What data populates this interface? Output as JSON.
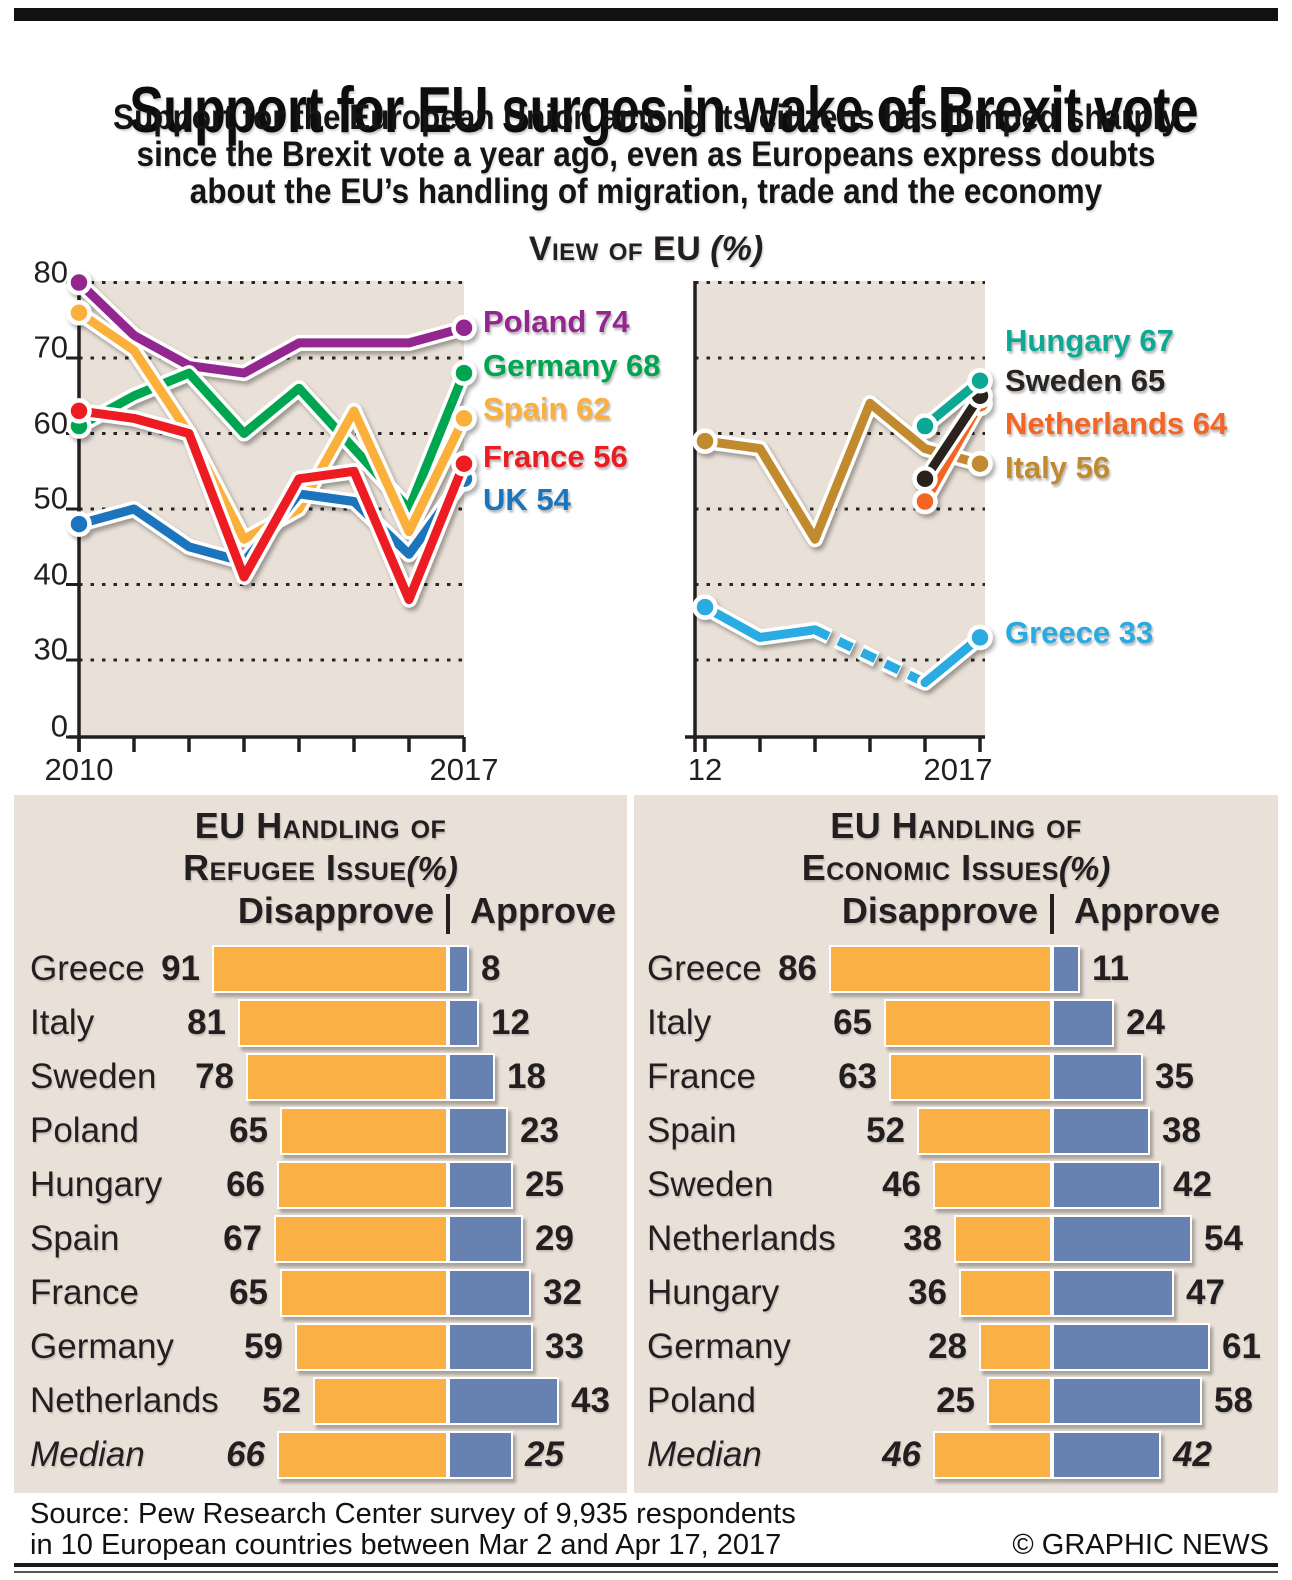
{
  "header": {
    "title": "Support for EU surges in wake of Brexit vote",
    "subtitle_lines": [
      "Support for the European Union among its citizens has jumped sharply",
      "since the Brexit vote a year ago, even as Europeans express doubts",
      "about the EU’s handling of migration, trade and the economy"
    ]
  },
  "chart_title": {
    "main": "View of EU",
    "unit": "(%)"
  },
  "chart_data": [
    {
      "id": "view-of-eu-left",
      "type": "line",
      "x": [
        2010,
        2011,
        2012,
        2013,
        2014,
        2015,
        2016,
        2017
      ],
      "x_axis_labels": [
        "2010",
        "2017"
      ],
      "ylim": [
        0,
        80
      ],
      "yticks": [
        80,
        70,
        60,
        50,
        40,
        30,
        0
      ],
      "grid": "dotted-horizontal",
      "legend_position": "right",
      "series": [
        {
          "name": "Poland",
          "color": "#93278F",
          "values": [
            80,
            73,
            69,
            68,
            72,
            72,
            72,
            74
          ],
          "label": "Poland 74"
        },
        {
          "name": "Germany",
          "color": "#00A550",
          "values": [
            61,
            65,
            68,
            60,
            66,
            58,
            50,
            68
          ],
          "label": "Germany 68"
        },
        {
          "name": "Spain",
          "color": "#FBB03B",
          "values": [
            76,
            71,
            60,
            46,
            50,
            63,
            47,
            62
          ],
          "label": "Spain 62"
        },
        {
          "name": "UK",
          "color": "#1B75BC",
          "values": [
            48,
            50,
            45,
            43,
            52,
            51,
            44,
            54
          ],
          "label": "UK 54"
        },
        {
          "name": "France",
          "color": "#EC1C24",
          "values": [
            63,
            62,
            60,
            41,
            54,
            55,
            38,
            56
          ],
          "label": "France 56"
        }
      ]
    },
    {
      "id": "view-of-eu-right",
      "type": "line",
      "x": [
        2012,
        2013,
        2014,
        2015,
        2016,
        2017
      ],
      "x_axis_labels": [
        "12",
        "2017"
      ],
      "ylim": [
        0,
        80
      ],
      "grid": "dotted-horizontal",
      "legend_position": "right",
      "series": [
        {
          "name": "Italy",
          "color": "#C18A2E",
          "values": [
            59,
            58,
            46,
            64,
            58,
            56
          ],
          "label": "Italy 56"
        },
        {
          "name": "Netherlands",
          "color": "#F26522",
          "values": [
            null,
            null,
            null,
            null,
            51,
            64
          ],
          "label": "Netherlands 64"
        },
        {
          "name": "Sweden",
          "color": "#29241F",
          "values": [
            null,
            null,
            null,
            null,
            54,
            65
          ],
          "label": "Sweden 65"
        },
        {
          "name": "Hungary",
          "color": "#0FA895",
          "values": [
            null,
            null,
            null,
            null,
            61,
            67
          ],
          "label": "Hungary 67"
        },
        {
          "name": "Greece",
          "color": "#29ABE2",
          "values": [
            37,
            33,
            34,
            null,
            27,
            33
          ],
          "label": "Greece 33",
          "segments": [
            {
              "idx": [
                0,
                1,
                2
              ],
              "dashed": false
            },
            {
              "idx": [
                2,
                4
              ],
              "dashed": true
            },
            {
              "idx": [
                4,
                5
              ],
              "dashed": false
            }
          ]
        }
      ]
    },
    {
      "id": "refugee-table",
      "type": "bar-table",
      "title_line1": "EU Handling of",
      "title_line2": "Refugee Issue",
      "unit": "(%)",
      "columns": [
        "Disapprove",
        "Approve"
      ],
      "colors": {
        "disapprove": "#FBB046",
        "approve": "#6782B1"
      },
      "rows": [
        {
          "country": "Greece",
          "disapprove": 91,
          "approve": 8
        },
        {
          "country": "Italy",
          "disapprove": 81,
          "approve": 12
        },
        {
          "country": "Sweden",
          "disapprove": 78,
          "approve": 18
        },
        {
          "country": "Poland",
          "disapprove": 65,
          "approve": 23
        },
        {
          "country": "Hungary",
          "disapprove": 66,
          "approve": 25
        },
        {
          "country": "Spain",
          "disapprove": 67,
          "approve": 29
        },
        {
          "country": "France",
          "disapprove": 65,
          "approve": 32
        },
        {
          "country": "Germany",
          "disapprove": 59,
          "approve": 33
        },
        {
          "country": "Netherlands",
          "disapprove": 52,
          "approve": 43
        },
        {
          "country": "Median",
          "disapprove": 66,
          "approve": 25
        }
      ]
    },
    {
      "id": "economic-table",
      "type": "bar-table",
      "title_line1": "EU Handling of",
      "title_line2": "Economic Issues",
      "unit": "(%)",
      "columns": [
        "Disapprove",
        "Approve"
      ],
      "colors": {
        "disapprove": "#FBB046",
        "approve": "#6782B1"
      },
      "rows": [
        {
          "country": "Greece",
          "disapprove": 86,
          "approve": 11
        },
        {
          "country": "Italy",
          "disapprove": 65,
          "approve": 24
        },
        {
          "country": "France",
          "disapprove": 63,
          "approve": 35
        },
        {
          "country": "Spain",
          "disapprove": 52,
          "approve": 38
        },
        {
          "country": "Sweden",
          "disapprove": 46,
          "approve": 42
        },
        {
          "country": "Netherlands",
          "disapprove": 38,
          "approve": 54
        },
        {
          "country": "Hungary",
          "disapprove": 36,
          "approve": 47
        },
        {
          "country": "Germany",
          "disapprove": 28,
          "approve": 61
        },
        {
          "country": "Poland",
          "disapprove": 25,
          "approve": 58
        },
        {
          "country": "Median",
          "disapprove": 46,
          "approve": 42
        }
      ]
    }
  ],
  "footer": {
    "source_lines": [
      "Source: Pew Research Center survey of 9,935 respondents",
      "in 10 European countries between Mar 2 and Apr 17, 2017"
    ],
    "credit": "© GRAPHIC NEWS"
  }
}
